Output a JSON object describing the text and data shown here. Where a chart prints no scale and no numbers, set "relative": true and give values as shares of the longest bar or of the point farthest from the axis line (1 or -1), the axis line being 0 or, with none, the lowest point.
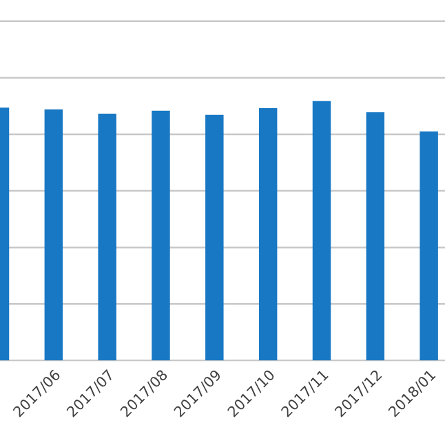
{
  "chart_data": {
    "type": "bar",
    "relative": true,
    "categories": [
      null,
      "2017/06",
      "2017/07",
      "2017/08",
      "2017/09",
      "2017/10",
      "2017/11",
      "2017/12",
      "2018/01"
    ],
    "values": [
      0.975,
      0.968,
      0.952,
      0.963,
      0.947,
      0.973,
      1,
      0.957,
      0.883
    ],
    "color": "#1878c4",
    "grid": "y"
  }
}
